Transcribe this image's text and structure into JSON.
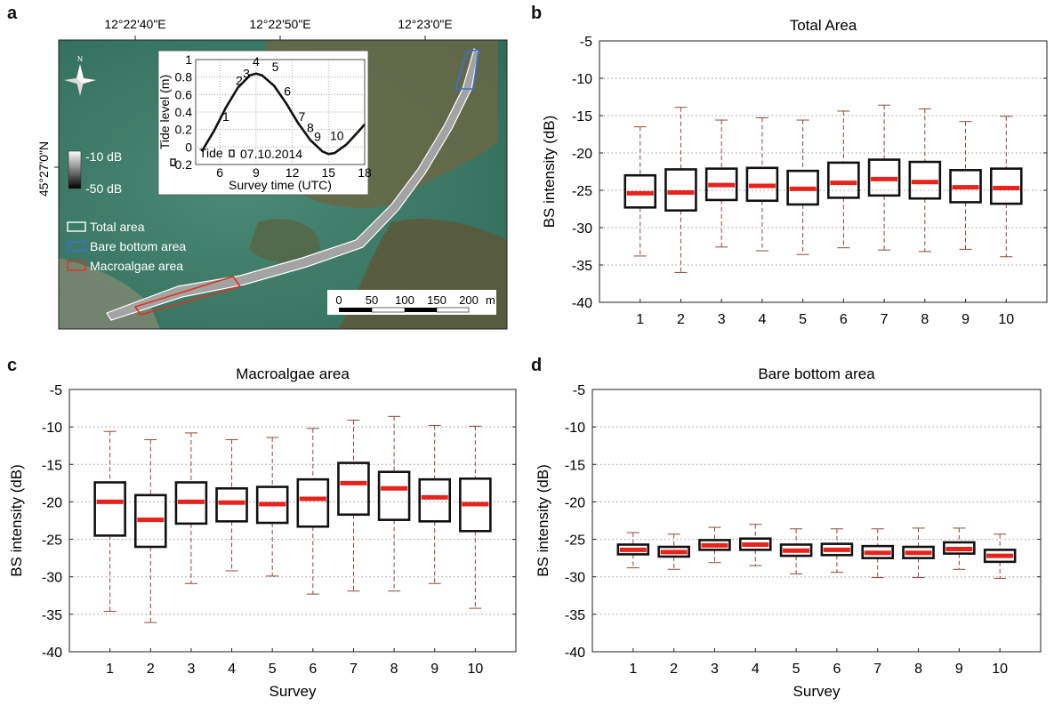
{
  "panels": {
    "a": {
      "letter": "a"
    },
    "b": {
      "letter": "b"
    },
    "c": {
      "letter": "c"
    },
    "d": {
      "letter": "d"
    }
  },
  "map": {
    "longitude_labels": [
      "12°22'40\"E",
      "12°22'50\"E",
      "12°23'0\"E"
    ],
    "latitude_label": "45°27'0\"N",
    "north_label": "N",
    "colorbar": {
      "top": "-10 dB",
      "bottom": "-50 dB"
    },
    "legend": [
      {
        "label": "Total area",
        "color": "#ffffff"
      },
      {
        "label": "Bare bottom area",
        "color": "#3b6fd8"
      },
      {
        "label": "Macroalgae area",
        "color": "#e0301e"
      }
    ],
    "scale_bar": {
      "ticks": [
        "0",
        "50",
        "100",
        "150",
        "200"
      ],
      "unit": "m"
    },
    "colors": {
      "water": "#3f7f6a",
      "land": "#6e6a48",
      "sand": "#9a9a86",
      "survey": "#9c9c9c"
    }
  },
  "chart_data": [
    {
      "type": "line",
      "panel": "a-inset",
      "xlabel": "Survey time (UTC)",
      "ylabel": "Tide level (m)",
      "xticks": [
        "6",
        "9",
        "12",
        "15",
        "18"
      ],
      "yticks": [
        "-0.2",
        "0",
        "0.2",
        "0.4",
        "0.6",
        "0.8",
        "1"
      ],
      "xlim": [
        4,
        18
      ],
      "ylim": [
        -0.2,
        1
      ],
      "grid": true,
      "legend": {
        "label": "Tide",
        "placement": "bottom-left"
      },
      "date_label": "07.10.2014",
      "series": [
        {
          "name": "Tide",
          "x": [
            4.5,
            5.5,
            6.5,
            7.5,
            8.5,
            9.0,
            9.5,
            10.5,
            11.5,
            12.5,
            13.5,
            14.5,
            15.0,
            15.5,
            16.5,
            17.5,
            18.0
          ],
          "y": [
            -0.05,
            0.18,
            0.45,
            0.68,
            0.82,
            0.84,
            0.82,
            0.7,
            0.5,
            0.27,
            0.08,
            -0.05,
            -0.08,
            -0.07,
            0.03,
            0.18,
            0.26
          ]
        }
      ],
      "annotations": [
        {
          "label": "1",
          "x": 6.5,
          "y": 0.3
        },
        {
          "label": "2",
          "x": 7.6,
          "y": 0.71
        },
        {
          "label": "3",
          "x": 8.2,
          "y": 0.79
        },
        {
          "label": "4",
          "x": 9.0,
          "y": 0.93
        },
        {
          "label": "5",
          "x": 10.6,
          "y": 0.87
        },
        {
          "label": "6",
          "x": 11.6,
          "y": 0.59
        },
        {
          "label": "7",
          "x": 12.8,
          "y": 0.3
        },
        {
          "label": "8",
          "x": 13.5,
          "y": 0.17
        },
        {
          "label": "9",
          "x": 14.1,
          "y": 0.07
        },
        {
          "label": "10",
          "x": 15.7,
          "y": 0.08
        }
      ]
    },
    {
      "type": "box",
      "panel": "b",
      "title": "Total Area",
      "xlabel": "",
      "ylabel": "BS intensity (dB)",
      "ylim": [
        -40,
        -5
      ],
      "yticks": [
        "-5",
        "-10",
        "-15",
        "-20",
        "-25",
        "-30",
        "-35",
        "-40"
      ],
      "categories": [
        "1",
        "2",
        "3",
        "4",
        "5",
        "6",
        "7",
        "8",
        "9",
        "10"
      ],
      "grid": true,
      "median_color": "#e8231c",
      "whisker_color": "#8a4a3a",
      "boxes": [
        {
          "min": -33.8,
          "q1": -27.3,
          "median": -25.4,
          "q3": -23.0,
          "max": -16.5
        },
        {
          "min": -36.0,
          "q1": -27.7,
          "median": -25.3,
          "q3": -22.2,
          "max": -13.9
        },
        {
          "min": -32.6,
          "q1": -26.3,
          "median": -24.3,
          "q3": -22.1,
          "max": -15.6
        },
        {
          "min": -33.1,
          "q1": -26.4,
          "median": -24.4,
          "q3": -22.0,
          "max": -15.3
        },
        {
          "min": -33.6,
          "q1": -26.9,
          "median": -24.8,
          "q3": -22.4,
          "max": -15.6
        },
        {
          "min": -32.7,
          "q1": -26.0,
          "median": -24.0,
          "q3": -21.3,
          "max": -14.4
        },
        {
          "min": -33.0,
          "q1": -25.7,
          "median": -23.5,
          "q3": -20.9,
          "max": -13.6
        },
        {
          "min": -33.2,
          "q1": -26.1,
          "median": -23.9,
          "q3": -21.2,
          "max": -14.1
        },
        {
          "min": -32.9,
          "q1": -26.6,
          "median": -24.6,
          "q3": -22.3,
          "max": -15.8
        },
        {
          "min": -33.9,
          "q1": -26.8,
          "median": -24.7,
          "q3": -22.1,
          "max": -15.1
        }
      ]
    },
    {
      "type": "box",
      "panel": "c",
      "title": "Macroalgae area",
      "xlabel": "Survey",
      "ylabel": "BS intensity (dB)",
      "ylim": [
        -40,
        -5
      ],
      "yticks": [
        "-5",
        "-10",
        "-15",
        "-20",
        "-25",
        "-30",
        "-35",
        "-40"
      ],
      "categories": [
        "1",
        "2",
        "3",
        "4",
        "5",
        "6",
        "7",
        "8",
        "9",
        "10"
      ],
      "grid": true,
      "median_color": "#e8231c",
      "whisker_color": "#8a4a3a",
      "boxes": [
        {
          "min": -34.6,
          "q1": -24.5,
          "median": -20.0,
          "q3": -17.4,
          "max": -10.6
        },
        {
          "min": -36.1,
          "q1": -26.0,
          "median": -22.4,
          "q3": -19.1,
          "max": -11.7
        },
        {
          "min": -30.9,
          "q1": -22.9,
          "median": -20.0,
          "q3": -17.4,
          "max": -10.8
        },
        {
          "min": -29.2,
          "q1": -22.6,
          "median": -20.1,
          "q3": -18.2,
          "max": -11.7
        },
        {
          "min": -29.9,
          "q1": -22.8,
          "median": -20.3,
          "q3": -18.0,
          "max": -11.4
        },
        {
          "min": -32.3,
          "q1": -23.3,
          "median": -19.6,
          "q3": -17.0,
          "max": -10.2
        },
        {
          "min": -31.9,
          "q1": -21.7,
          "median": -17.5,
          "q3": -14.8,
          "max": -9.1
        },
        {
          "min": -31.9,
          "q1": -22.4,
          "median": -18.2,
          "q3": -16.0,
          "max": -8.6
        },
        {
          "min": -30.9,
          "q1": -22.6,
          "median": -19.4,
          "q3": -17.0,
          "max": -9.8
        },
        {
          "min": -34.2,
          "q1": -23.9,
          "median": -20.3,
          "q3": -16.9,
          "max": -9.9
        }
      ]
    },
    {
      "type": "box",
      "panel": "d",
      "title": "Bare bottom area",
      "xlabel": "Survey",
      "ylabel": "BS intensity (dB)",
      "ylim": [
        -40,
        -5
      ],
      "yticks": [
        "-5",
        "-10",
        "-15",
        "-20",
        "-25",
        "-30",
        "-35",
        "-40"
      ],
      "categories": [
        "1",
        "2",
        "3",
        "4",
        "5",
        "6",
        "7",
        "8",
        "9",
        "10"
      ],
      "grid": true,
      "median_color": "#e8231c",
      "whisker_color": "#8a4a3a",
      "boxes": [
        {
          "min": -28.8,
          "q1": -27.0,
          "median": -26.4,
          "q3": -25.7,
          "max": -24.1
        },
        {
          "min": -29.0,
          "q1": -27.3,
          "median": -26.7,
          "q3": -26.0,
          "max": -24.3
        },
        {
          "min": -28.1,
          "q1": -26.4,
          "median": -25.8,
          "q3": -25.1,
          "max": -23.4
        },
        {
          "min": -28.5,
          "q1": -26.4,
          "median": -25.7,
          "q3": -24.9,
          "max": -23.0
        },
        {
          "min": -29.6,
          "q1": -27.2,
          "median": -26.5,
          "q3": -25.7,
          "max": -23.6
        },
        {
          "min": -29.4,
          "q1": -27.1,
          "median": -26.4,
          "q3": -25.6,
          "max": -23.6
        },
        {
          "min": -30.1,
          "q1": -27.5,
          "median": -26.8,
          "q3": -25.9,
          "max": -23.6
        },
        {
          "min": -30.1,
          "q1": -27.5,
          "median": -26.8,
          "q3": -26.0,
          "max": -23.5
        },
        {
          "min": -29.0,
          "q1": -26.9,
          "median": -26.3,
          "q3": -25.4,
          "max": -23.5
        },
        {
          "min": -30.2,
          "q1": -28.0,
          "median": -27.2,
          "q3": -26.4,
          "max": -24.3
        }
      ]
    }
  ]
}
